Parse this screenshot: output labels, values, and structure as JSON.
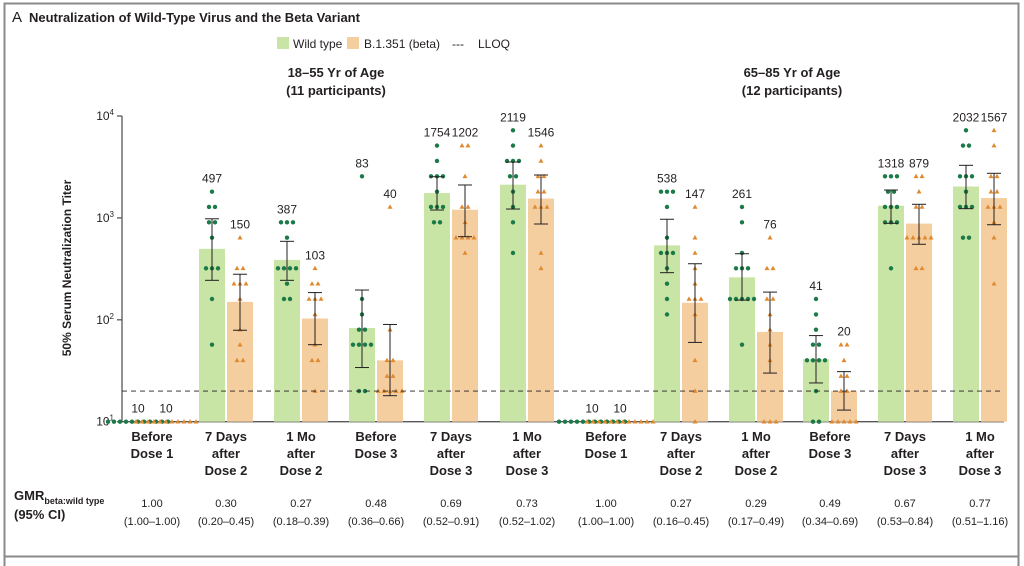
{
  "chart_data": {
    "type": "bar",
    "panel_letter": "A",
    "title": "Neutralization of Wild-Type Virus and the Beta Variant",
    "legend": {
      "wild": "Wild type",
      "beta": "B.1.351 (beta)",
      "lloq_mark": "---",
      "lloq": "LLOQ",
      "placement": "top-center"
    },
    "colors": {
      "wild_bar": "#c9e5a6",
      "wild_point": "#1b7a48",
      "beta_bar": "#f5cea0",
      "beta_point": "#e0892e",
      "axis": "#58585a"
    },
    "yaxis": {
      "label": "50% Serum Neutralization Titer",
      "scale": "log",
      "range": [
        10,
        10000
      ],
      "ticks": [
        {
          "base": "10",
          "exp": "1",
          "value": 10
        },
        {
          "base": "10",
          "exp": "2",
          "value": 100
        },
        {
          "base": "10",
          "exp": "3",
          "value": 1000
        },
        {
          "base": "10",
          "exp": "4",
          "value": 10000
        }
      ]
    },
    "lloq_value": 20,
    "gmr_label": {
      "main": "GMR",
      "sub": "beta:wild type",
      "ci": "(95% CI)"
    },
    "panels": [
      {
        "title": "18–55 Yr of Age",
        "subtitle": "(11 participants)",
        "groups": [
          {
            "label": [
              "Before",
              "Dose 1"
            ],
            "wild": {
              "gmt": 10,
              "ci": [
                10,
                10
              ],
              "points": [
                10,
                10,
                10,
                10,
                10,
                10,
                10,
                10,
                10,
                10,
                10
              ]
            },
            "beta": {
              "gmt": 10,
              "ci": [
                10,
                10
              ],
              "points": [
                10,
                10,
                10,
                10,
                10,
                10,
                10,
                10,
                10,
                10,
                10
              ]
            },
            "gmr": "1.00",
            "gmr_ci": "(1.00–1.00)"
          },
          {
            "label": [
              "7 Days",
              "after",
              "Dose 2"
            ],
            "wild": {
              "gmt": 497,
              "ci": [
                244,
                980
              ],
              "points": [
                1810,
                1280,
                1280,
                905,
                905,
                640,
                320,
                320,
                320,
                160,
                57
              ]
            },
            "beta": {
              "gmt": 150,
              "ci": [
                79,
                280
              ],
              "points": [
                640,
                320,
                320,
                226,
                226,
                226,
                160,
                80,
                57,
                40,
                40
              ]
            },
            "gmr": "0.30",
            "gmr_ci": "(0.20–0.45)"
          },
          {
            "label": [
              "1 Mo",
              "after",
              "Dose 2"
            ],
            "wild": {
              "gmt": 387,
              "ci": [
                244,
                589
              ],
              "points": [
                905,
                905,
                905,
                640,
                320,
                320,
                320,
                320,
                226,
                160,
                160
              ]
            },
            "beta": {
              "gmt": 103,
              "ci": [
                57,
                185
              ],
              "points": [
                320,
                226,
                226,
                160,
                160,
                160,
                113,
                57,
                40,
                40,
                20
              ]
            },
            "gmr": "0.27",
            "gmr_ci": "(0.18–0.39)"
          },
          {
            "label": [
              "Before",
              "Dose 3"
            ],
            "wild": {
              "gmt": 83,
              "ci": [
                34,
                196
              ],
              "points": [
                2560,
                160,
                113,
                80,
                80,
                57,
                57,
                57,
                57,
                20,
                20
              ]
            },
            "beta": {
              "gmt": 40,
              "ci": [
                18,
                90
              ],
              "points": [
                1280,
                80,
                40,
                40,
                28,
                28,
                20,
                20,
                20,
                20,
                20
              ]
            },
            "gmr": "0.48",
            "gmr_ci": "(0.36–0.66)"
          },
          {
            "label": [
              "7 Days",
              "after",
              "Dose 3"
            ],
            "wild": {
              "gmt": 1754,
              "ci": [
                1195,
                2535
              ],
              "points": [
                5120,
                3620,
                2560,
                2560,
                2560,
                1810,
                1280,
                1280,
                1280,
                905,
                905
              ]
            },
            "beta": {
              "gmt": 1202,
              "ci": [
                654,
                2104
              ],
              "points": [
                5120,
                5120,
                2560,
                1280,
                1280,
                905,
                640,
                640,
                640,
                640,
                453
              ]
            },
            "gmr": "0.69",
            "gmr_ci": "(0.52–0.91)"
          },
          {
            "label": [
              "1 Mo",
              "after",
              "Dose 3"
            ],
            "wild": {
              "gmt": 2119,
              "ci": [
                1222,
                3535
              ],
              "points": [
                7240,
                5120,
                3620,
                3620,
                3620,
                2560,
                2560,
                1810,
                1280,
                905,
                453
              ]
            },
            "beta": {
              "gmt": 1546,
              "ci": [
                871,
                2637
              ],
              "points": [
                5120,
                3620,
                2560,
                2560,
                1810,
                1810,
                1280,
                1280,
                1280,
                453,
                320
              ]
            },
            "gmr": "0.73",
            "gmr_ci": "(0.52–1.02)"
          }
        ]
      },
      {
        "title": "65–85 Yr of Age",
        "subtitle": "(12 participants)",
        "groups": [
          {
            "label": [
              "Before",
              "Dose 1"
            ],
            "wild": {
              "gmt": 10,
              "ci": [
                10,
                10
              ],
              "points": [
                10,
                10,
                10,
                10,
                10,
                10,
                10,
                10,
                10,
                10,
                10,
                10
              ]
            },
            "beta": {
              "gmt": 10,
              "ci": [
                10,
                10
              ],
              "points": [
                10,
                10,
                10,
                10,
                10,
                10,
                10,
                10,
                10,
                10,
                10,
                10
              ]
            },
            "gmr": "1.00",
            "gmr_ci": "(1.00–1.00)"
          },
          {
            "label": [
              "7 Days",
              "after",
              "Dose 2"
            ],
            "wild": {
              "gmt": 538,
              "ci": [
                290,
                970
              ],
              "points": [
                1810,
                1810,
                1810,
                1280,
                640,
                453,
                453,
                453,
                320,
                226,
                160,
                113
              ]
            },
            "beta": {
              "gmt": 147,
              "ci": [
                60,
                355
              ],
              "points": [
                1280,
                640,
                453,
                320,
                226,
                160,
                160,
                160,
                113,
                40,
                20,
                10
              ]
            },
            "gmr": "0.27",
            "gmr_ci": "(0.16–0.45)"
          },
          {
            "label": [
              "1 Mo",
              "after",
              "Dose 2"
            ],
            "wild": {
              "gmt": 261,
              "ci": [
                156,
                445
              ],
              "points": [
                1280,
                905,
                453,
                320,
                320,
                320,
                160,
                160,
                160,
                160,
                160,
                57
              ]
            },
            "beta": {
              "gmt": 76,
              "ci": [
                30,
                187
              ],
              "points": [
                640,
                320,
                320,
                160,
                160,
                113,
                80,
                57,
                40,
                10,
                10,
                10
              ]
            },
            "gmr": "0.29",
            "gmr_ci": "(0.17–0.49)"
          },
          {
            "label": [
              "Before",
              "Dose 3"
            ],
            "wild": {
              "gmt": 41,
              "ci": [
                24,
                70
              ],
              "points": [
                160,
                113,
                80,
                57,
                57,
                40,
                40,
                40,
                40,
                20,
                10,
                10
              ]
            },
            "beta": {
              "gmt": 20,
              "ci": [
                13,
                31
              ],
              "points": [
                57,
                57,
                40,
                28,
                28,
                20,
                20,
                10,
                10,
                10,
                10,
                10
              ]
            },
            "gmr": "0.49",
            "gmr_ci": "(0.34–0.69)"
          },
          {
            "label": [
              "7 Days",
              "after",
              "Dose 3"
            ],
            "wild": {
              "gmt": 1318,
              "ci": [
                885,
                1879
              ],
              "points": [
                2560,
                2560,
                2560,
                1810,
                1810,
                1280,
                1280,
                1280,
                905,
                905,
                905,
                320
              ]
            },
            "beta": {
              "gmt": 879,
              "ci": [
                551,
                1360
              ],
              "points": [
                2560,
                2560,
                1810,
                1280,
                1280,
                640,
                640,
                640,
                640,
                640,
                320,
                320
              ]
            },
            "gmr": "0.67",
            "gmr_ci": "(0.53–0.84)"
          },
          {
            "label": [
              "1 Mo",
              "after",
              "Dose 3"
            ],
            "wild": {
              "gmt": 2032,
              "ci": [
                1232,
                3281
              ],
              "points": [
                7240,
                5120,
                5120,
                2560,
                2560,
                2560,
                1810,
                1280,
                1280,
                1280,
                640,
                640
              ]
            },
            "beta": {
              "gmt": 1567,
              "ci": [
                857,
                2740
              ],
              "points": [
                7240,
                5120,
                2560,
                2560,
                1810,
                1810,
                1280,
                1280,
                1280,
                905,
                640,
                226
              ]
            },
            "gmr": "0.77",
            "gmr_ci": "(0.51–1.16)"
          }
        ]
      }
    ]
  }
}
